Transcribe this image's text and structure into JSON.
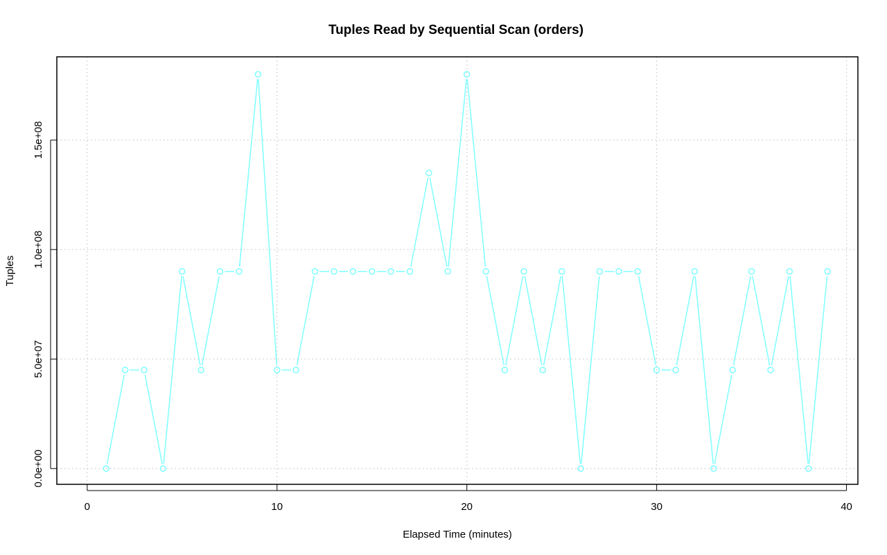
{
  "chart_data": {
    "type": "line",
    "title": "Tuples Read by Sequential Scan (orders)",
    "xlabel": "Elapsed Time (minutes)",
    "ylabel": "Tuples",
    "xlim": [
      -1.6,
      40.6
    ],
    "ylim": [
      -7200000,
      188000000
    ],
    "x_ticks": [
      0,
      10,
      20,
      30,
      40
    ],
    "x_tick_labels": [
      "0",
      "10",
      "20",
      "30",
      "40"
    ],
    "y_ticks": [
      0,
      50000000,
      100000000,
      150000000
    ],
    "y_tick_labels": [
      "0.0e+00",
      "5.0e+07",
      "1.0e+08",
      "1.5e+08"
    ],
    "grid": true,
    "series_color": "#7fffff",
    "markers": "open-circle",
    "x": [
      1,
      2,
      3,
      4,
      5,
      6,
      7,
      8,
      9,
      10,
      11,
      12,
      13,
      14,
      15,
      16,
      17,
      18,
      19,
      20,
      21,
      22,
      23,
      24,
      25,
      26,
      27,
      28,
      29,
      30,
      31,
      32,
      33,
      34,
      35,
      36,
      37,
      38,
      39
    ],
    "values": [
      0,
      45000000,
      45000000,
      0,
      90000000,
      45000000,
      90000000,
      90000000,
      180000000,
      45000000,
      45000000,
      90000000,
      90000000,
      90000000,
      90000000,
      90000000,
      90000000,
      135000000,
      90000000,
      180000000,
      90000000,
      45000000,
      90000000,
      45000000,
      90000000,
      0,
      90000000,
      90000000,
      90000000,
      45000000,
      45000000,
      90000000,
      0,
      45000000,
      90000000,
      45000000,
      90000000,
      0,
      90000000
    ]
  }
}
